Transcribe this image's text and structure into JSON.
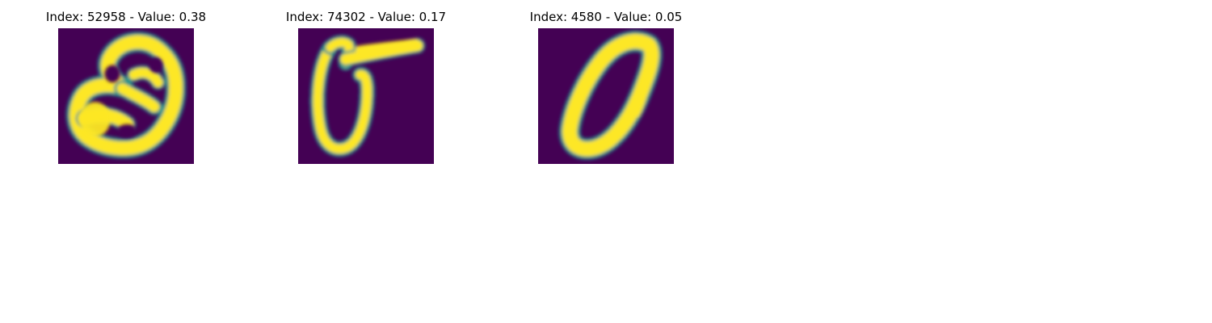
{
  "figure": {
    "background_color": "#ffffff",
    "colormap": {
      "name": "viridis",
      "low_color": "#440154",
      "mid_color": "#21918c",
      "high_color": "#fde725"
    },
    "panels": [
      {
        "title": "Index: 52958 - Value: 0.38",
        "index": 52958,
        "value": 0.38,
        "depicted_character": "handwritten 8-like glyph (rotated)"
      },
      {
        "title": "Index: 74302 - Value: 0.17",
        "index": 74302,
        "value": 0.17,
        "depicted_character": "handwritten 0 with top stroke"
      },
      {
        "title": "Index: 4580 - Value: 0.05",
        "index": 4580,
        "value": 0.05,
        "depicted_character": "handwritten 0 (slanted)"
      }
    ]
  }
}
